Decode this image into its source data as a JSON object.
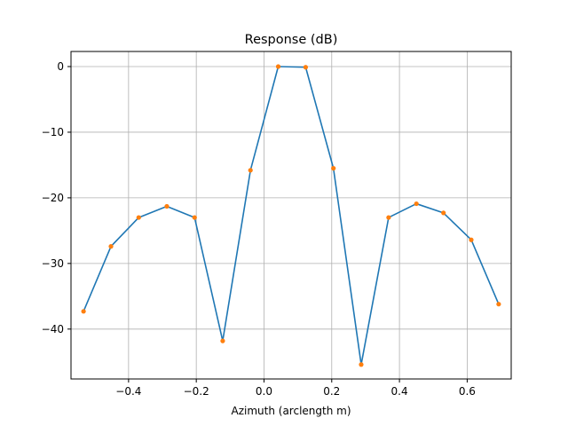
{
  "chart_data": {
    "type": "line",
    "title": "Response (dB)",
    "xlabel": "Azimuth (arclength m)",
    "ylabel": "",
    "xlim": [
      -0.57,
      0.73
    ],
    "ylim": [
      -47.6,
      2.3
    ],
    "xticks": [
      -0.4,
      -0.2,
      0.0,
      0.2,
      0.4,
      0.6
    ],
    "xtick_labels": [
      "−0.4",
      "−0.2",
      "0.0",
      "0.2",
      "0.4",
      "0.6"
    ],
    "yticks": [
      0,
      -10,
      -20,
      -30,
      -40
    ],
    "ytick_labels": [
      "0",
      "−10",
      "−20",
      "−30",
      "−40"
    ],
    "grid": true,
    "series": [
      {
        "color": "#1f77b4",
        "marker_color": "#ff7f0e",
        "x": [
          -0.533,
          -0.452,
          -0.37,
          -0.287,
          -0.205,
          -0.122,
          -0.04,
          0.042,
          0.123,
          0.205,
          0.287,
          0.368,
          0.45,
          0.53,
          0.612,
          0.693
        ],
        "y": [
          -37.3,
          -27.4,
          -23.0,
          -21.3,
          -23.0,
          -41.8,
          -15.8,
          0.0,
          -0.1,
          -15.5,
          -45.4,
          -23.0,
          -20.9,
          -22.3,
          -26.4,
          -36.2
        ]
      }
    ]
  }
}
